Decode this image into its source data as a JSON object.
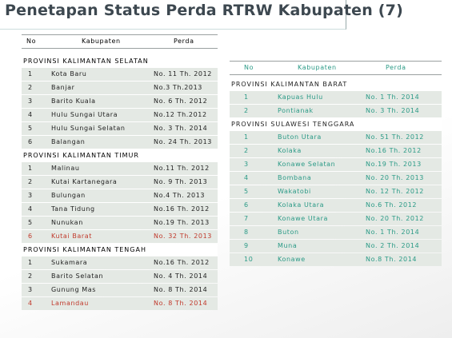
{
  "title": "Penetapan Status Perda RTRW Kabupaten (7)",
  "left_table": {
    "header": [
      "No",
      "Kabupaten",
      "Perda"
    ],
    "sections": [
      {
        "title": "PROVINSI  KALIMANTAN SELATAN",
        "rows": [
          {
            "cells": [
              "1",
              "Kota Baru",
              "No. 11 Th. 2012"
            ]
          },
          {
            "cells": [
              "2",
              "Banjar",
              "No.3 Th.2013"
            ]
          },
          {
            "cells": [
              "3",
              "Barito Kuala",
              "No. 6 Th. 2012"
            ]
          },
          {
            "cells": [
              "4",
              "Hulu Sungai Utara",
              "No.12 Th.2012"
            ]
          },
          {
            "cells": [
              "5",
              "Hulu Sungai Selatan",
              "No. 3 Th. 2014"
            ]
          },
          {
            "cells": [
              "6",
              "Balangan",
              "No. 24 Th. 2013"
            ]
          }
        ]
      },
      {
        "title": "PROVINSI  KALIMANTAN TIMUR",
        "rows": [
          {
            "cells": [
              "1",
              "Malinau",
              "No.11 Th. 2012"
            ]
          },
          {
            "cells": [
              "2",
              "Kutai Kartanegara",
              "No. 9 Th. 2013"
            ]
          },
          {
            "cells": [
              "3",
              "Bulungan",
              "No.4 Th. 2013"
            ]
          },
          {
            "cells": [
              "4",
              "Tana Tidung",
              "No.16 Th. 2012"
            ]
          },
          {
            "cells": [
              "5",
              "Nunukan",
              "No.19 Th. 2013"
            ]
          },
          {
            "cells": [
              "6",
              "Kutai Barat",
              "No. 32 Th. 2013"
            ],
            "color": "#c0392b"
          }
        ]
      },
      {
        "title": "PROVINSI KALIMANTAN TENGAH",
        "rows": [
          {
            "cells": [
              "1",
              "Sukamara",
              "No.16 Th. 2012"
            ]
          },
          {
            "cells": [
              "2",
              "Barito Selatan",
              "No. 4 Th. 2014"
            ]
          },
          {
            "cells": [
              "3",
              "Gunung Mas",
              "No. 8 Th. 2014"
            ]
          },
          {
            "cells": [
              "4",
              "Lamandau",
              "No. 8 Th. 2014"
            ],
            "color": "#c0392b"
          }
        ]
      }
    ]
  },
  "right_table": {
    "header": [
      "No",
      "Kabupaten",
      "Perda"
    ],
    "sections": [
      {
        "title": "PROVINSI  KALIMANTAN BARAT",
        "rows": [
          {
            "cells": [
              "1",
              "Kapuas Hulu",
              "No. 1 Th. 2014"
            ]
          },
          {
            "cells": [
              "2",
              "Pontianak",
              "No. 3 Th. 2014"
            ]
          }
        ]
      },
      {
        "title": "PROVINSI  SULAWESI TENGGARA",
        "rows": [
          {
            "cells": [
              "1",
              "Buton Utara",
              "No. 51 Th. 2012"
            ]
          },
          {
            "cells": [
              "2",
              "Kolaka",
              "No.16 Th. 2012"
            ]
          },
          {
            "cells": [
              "3",
              "Konawe Selatan",
              "No.19 Th. 2013"
            ]
          },
          {
            "cells": [
              "4",
              "Bombana",
              "No. 20 Th. 2013"
            ]
          },
          {
            "cells": [
              "5",
              "Wakatobi",
              "No. 12 Th. 2012"
            ]
          },
          {
            "cells": [
              "6",
              "Kolaka Utara",
              "No.6 Th. 2012"
            ]
          },
          {
            "cells": [
              "7",
              "Konawe Utara",
              "No. 20 Th. 2012"
            ]
          },
          {
            "cells": [
              "8",
              "Buton",
              "No. 1 Th. 2014"
            ]
          },
          {
            "cells": [
              "9",
              "Muna",
              "No. 2 Th. 2014"
            ]
          },
          {
            "cells": [
              "10",
              "Konawe",
              "No.8 Th. 2014"
            ]
          }
        ]
      }
    ]
  }
}
